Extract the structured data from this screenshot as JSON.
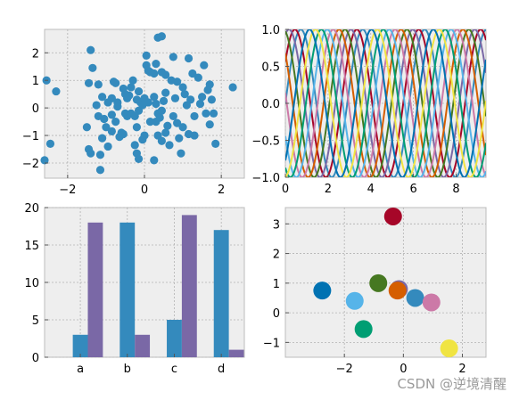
{
  "watermark": "CSDN @逆境清醒",
  "chart_data": [
    {
      "type": "scatter",
      "xlim": [
        -2.6,
        2.6
      ],
      "ylim": [
        -2.55,
        2.85
      ],
      "xticks": [
        -2,
        0,
        2
      ],
      "yticks": [
        -2,
        -1,
        0,
        1,
        2
      ],
      "grid": true,
      "color": "#348ABD",
      "points": [
        [
          -2.55,
          1.0
        ],
        [
          -2.6,
          -1.9
        ],
        [
          -2.45,
          -1.3
        ],
        [
          -2.3,
          0.6
        ],
        [
          -1.45,
          -1.5
        ],
        [
          -1.4,
          2.1
        ],
        [
          -1.35,
          1.45
        ],
        [
          -1.45,
          0.9
        ],
        [
          -1.2,
          0.85
        ],
        [
          -1.1,
          0.4
        ],
        [
          -1.25,
          0.1
        ],
        [
          -1.2,
          -0.3
        ],
        [
          -1.5,
          -0.7
        ],
        [
          -1.4,
          -1.65
        ],
        [
          -1.15,
          -1.7
        ],
        [
          -1.15,
          -2.25
        ],
        [
          -1.05,
          -0.4
        ],
        [
          -1.0,
          -0.7
        ],
        [
          -1.1,
          -1.1
        ],
        [
          -0.95,
          0.2
        ],
        [
          -0.85,
          0.35
        ],
        [
          -0.8,
          0.95
        ],
        [
          -0.75,
          0.9
        ],
        [
          -0.7,
          0.05
        ],
        [
          -0.75,
          -0.5
        ],
        [
          -0.85,
          -0.85
        ],
        [
          -0.95,
          -1.4
        ],
        [
          -0.65,
          -1.05
        ],
        [
          -0.6,
          -0.9
        ],
        [
          -0.55,
          -0.95
        ],
        [
          -0.7,
          0.2
        ],
        [
          -0.55,
          0.7
        ],
        [
          -0.5,
          0.5
        ],
        [
          -0.45,
          0.35
        ],
        [
          -0.4,
          0.45
        ],
        [
          -0.35,
          0.75
        ],
        [
          -0.3,
          1.0
        ],
        [
          -0.5,
          -0.2
        ],
        [
          -0.45,
          -0.3
        ],
        [
          -0.35,
          -0.2
        ],
        [
          -0.25,
          -0.3
        ],
        [
          -0.2,
          0.3
        ],
        [
          -0.1,
          0.2
        ],
        [
          -0.15,
          -0.1
        ],
        [
          -0.05,
          0.1
        ],
        [
          0.0,
          0.35
        ],
        [
          0.1,
          0.2
        ],
        [
          -0.2,
          -0.7
        ],
        [
          -0.25,
          -1.35
        ],
        [
          -0.2,
          -1.65
        ],
        [
          -0.15,
          -1.85
        ],
        [
          -0.05,
          -1.15
        ],
        [
          0.0,
          -1.0
        ],
        [
          0.1,
          1.35
        ],
        [
          0.05,
          1.55
        ],
        [
          0.15,
          1.3
        ],
        [
          0.25,
          1.25
        ],
        [
          0.3,
          1.6
        ],
        [
          0.05,
          1.9
        ],
        [
          0.35,
          2.55
        ],
        [
          0.45,
          2.6
        ],
        [
          0.25,
          0.4
        ],
        [
          0.3,
          0.15
        ],
        [
          0.35,
          -0.2
        ],
        [
          0.4,
          -0.35
        ],
        [
          0.3,
          -0.5
        ],
        [
          0.45,
          -0.1
        ],
        [
          0.5,
          0.25
        ],
        [
          0.55,
          0.55
        ],
        [
          0.45,
          1.3
        ],
        [
          0.55,
          1.2
        ],
        [
          0.7,
          1.0
        ],
        [
          0.75,
          1.85
        ],
        [
          0.85,
          0.95
        ],
        [
          0.35,
          -1.0
        ],
        [
          0.45,
          -1.2
        ],
        [
          0.55,
          -0.9
        ],
        [
          0.6,
          -0.65
        ],
        [
          0.25,
          -1.9
        ],
        [
          0.65,
          -1.35
        ],
        [
          0.75,
          -0.3
        ],
        [
          0.85,
          -0.55
        ],
        [
          0.9,
          -1.1
        ],
        [
          0.95,
          -1.65
        ],
        [
          1.0,
          -0.7
        ],
        [
          1.05,
          0.5
        ],
        [
          1.1,
          0.1
        ],
        [
          1.15,
          1.8
        ],
        [
          1.2,
          0.3
        ],
        [
          1.25,
          1.25
        ],
        [
          1.3,
          -0.3
        ],
        [
          1.3,
          -1.0
        ],
        [
          1.4,
          1.1
        ],
        [
          1.45,
          0.15
        ],
        [
          1.5,
          0.4
        ],
        [
          1.55,
          1.55
        ],
        [
          1.6,
          -0.2
        ],
        [
          1.65,
          0.65
        ],
        [
          1.7,
          0.85
        ],
        [
          1.7,
          -0.6
        ],
        [
          1.75,
          0.3
        ],
        [
          1.8,
          -0.2
        ],
        [
          1.85,
          -1.3
        ],
        [
          1.15,
          -0.95
        ],
        [
          2.3,
          0.75
        ],
        [
          1.0,
          0.75
        ],
        [
          0.8,
          0.35
        ],
        [
          0.15,
          -0.5
        ],
        [
          -0.15,
          0.6
        ],
        [
          -0.85,
          -0.25
        ]
      ]
    },
    {
      "type": "line",
      "xlim": [
        0,
        9.4
      ],
      "ylim": [
        -1,
        1
      ],
      "xticks": [
        0,
        2,
        4,
        6,
        8
      ],
      "yticks": [
        -1.0,
        -0.5,
        0.0,
        0.5,
        1.0
      ],
      "grid": true,
      "function": "sine",
      "period": 2.9,
      "series": [
        {
          "color": "#348ABD",
          "phase": 0.0
        },
        {
          "color": "#A60628",
          "phase": 0.6
        },
        {
          "color": "#7A68A6",
          "phase": 1.2
        },
        {
          "color": "#467821",
          "phase": 1.8
        },
        {
          "color": "#D55E00",
          "phase": 2.4
        },
        {
          "color": "#CC79A7",
          "phase": 3.0
        },
        {
          "color": "#56B4E9",
          "phase": 3.6
        },
        {
          "color": "#009E73",
          "phase": 4.2
        },
        {
          "color": "#F0E442",
          "phase": 4.8
        },
        {
          "color": "#0072B2",
          "phase": 5.4
        }
      ]
    },
    {
      "type": "bar",
      "categories": [
        "a",
        "b",
        "c",
        "d"
      ],
      "ylim": [
        0,
        20
      ],
      "yticks": [
        0,
        5,
        10,
        15,
        20
      ],
      "grid": true,
      "series": [
        {
          "color": "#348ABD",
          "values": [
            3,
            18,
            5,
            17
          ]
        },
        {
          "color": "#7A68A6",
          "values": [
            18,
            3,
            19,
            1
          ]
        }
      ]
    },
    {
      "type": "scatter",
      "xlim": [
        -4.0,
        2.8
      ],
      "ylim": [
        -1.5,
        3.55
      ],
      "xticks": [
        -2,
        0,
        2
      ],
      "yticks": [
        -1,
        0,
        1,
        2,
        3
      ],
      "grid": true,
      "points": [
        {
          "x": -0.35,
          "y": 3.25,
          "color": "#A60628"
        },
        {
          "x": -0.15,
          "y": 0.8,
          "color": "#7A68A6"
        },
        {
          "x": -0.85,
          "y": 1.0,
          "color": "#467821"
        },
        {
          "x": -2.75,
          "y": 0.75,
          "color": "#0072B2"
        },
        {
          "x": -1.65,
          "y": 0.4,
          "color": "#56B4E9"
        },
        {
          "x": -0.2,
          "y": 0.75,
          "color": "#D55E00"
        },
        {
          "x": 0.4,
          "y": 0.5,
          "color": "#348ABD"
        },
        {
          "x": 0.95,
          "y": 0.35,
          "color": "#CC79A7"
        },
        {
          "x": -1.35,
          "y": -0.55,
          "color": "#009E73"
        },
        {
          "x": 1.55,
          "y": -1.2,
          "color": "#F0E442"
        }
      ]
    }
  ]
}
